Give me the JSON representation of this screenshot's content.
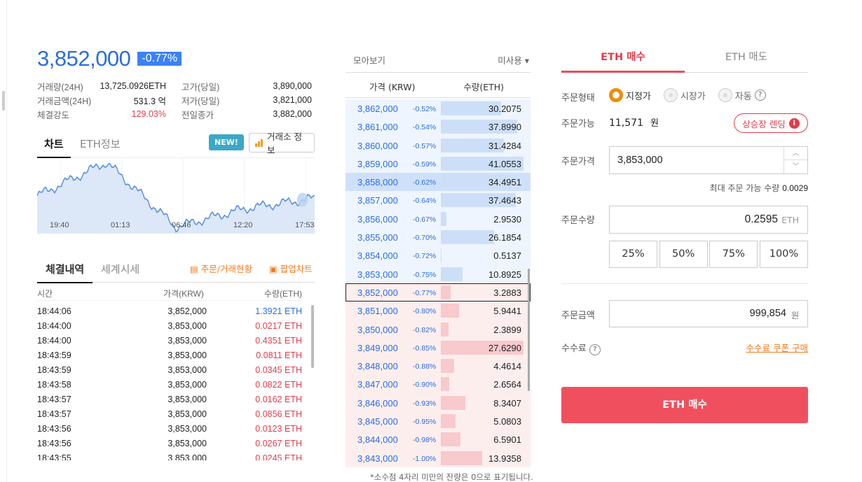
{
  "ticker": {
    "price": "3,852,000",
    "change": "-0.77%",
    "stats": [
      {
        "label": "거래량(24H)",
        "value": "13,725.0926ETH",
        "label2": "고가(당일)",
        "value2": "3,890,000"
      },
      {
        "label": "거래금액(24H)",
        "value": "531.3 억",
        "label2": "저가(당일)",
        "value2": "3,821,000"
      },
      {
        "label": "체결강도",
        "value": "129.03%",
        "label2": "전일종가",
        "value2": "3,882,000"
      }
    ]
  },
  "chart_tabs": {
    "active": "차트",
    "inactive": "ETH정보",
    "new_badge": "NEW!",
    "exchange_info": "거래소 정보"
  },
  "chart_data": {
    "type": "area",
    "x_ticks": [
      "19:40",
      "01:13",
      "06:46",
      "12:20",
      "17:53"
    ],
    "x": [
      "19:40",
      "01:13",
      "06:46",
      "12:20",
      "17:53"
    ],
    "values": [
      3855000,
      3895000,
      3818000,
      3840000,
      3852000
    ],
    "series_color": "#5b8fdc",
    "fill_color": "#dce8f8",
    "grid": true
  },
  "trade_tabs": {
    "active": "체결내역",
    "inactive": "세계시세",
    "link1": "주문/거래현황",
    "link2": "팝업차트"
  },
  "trade_head": {
    "time": "시간",
    "price": "가격(KRW)",
    "qty": "수량(ETH)"
  },
  "trades": [
    {
      "time": "18:44:06",
      "price": "3,852,000",
      "qty": "1.3921 ETH",
      "side": "sell"
    },
    {
      "time": "18:44:00",
      "price": "3,853,000",
      "qty": "0.0217 ETH",
      "side": "buy"
    },
    {
      "time": "18:44:00",
      "price": "3,853,000",
      "qty": "0.4351 ETH",
      "side": "buy"
    },
    {
      "time": "18:43:59",
      "price": "3,853,000",
      "qty": "0.0811 ETH",
      "side": "buy"
    },
    {
      "time": "18:43:59",
      "price": "3,853,000",
      "qty": "0.0345 ETH",
      "side": "buy"
    },
    {
      "time": "18:43:58",
      "price": "3,853,000",
      "qty": "0.0822 ETH",
      "side": "buy"
    },
    {
      "time": "18:43:57",
      "price": "3,853,000",
      "qty": "0.0162 ETH",
      "side": "buy"
    },
    {
      "time": "18:43:57",
      "price": "3,853,000",
      "qty": "0.0856 ETH",
      "side": "buy"
    },
    {
      "time": "18:43:56",
      "price": "3,853,000",
      "qty": "0.0123 ETH",
      "side": "buy"
    },
    {
      "time": "18:43:56",
      "price": "3,853,000",
      "qty": "0.0267 ETH",
      "side": "buy"
    },
    {
      "time": "18:43:55",
      "price": "3,853,000",
      "qty": "0.0245 ETH",
      "side": "buy"
    }
  ],
  "orderbook": {
    "view_label": "모아보기",
    "view_option": "미사용 ▾",
    "col_price": "가격 (KRW)",
    "col_qty": "수량(ETH)",
    "note": "*소수점 4자리 미만의 잔량은 0으로 표기됩니다.",
    "asks": [
      {
        "price": "3,862,000",
        "change": "-0.52%",
        "qty": "30.2075",
        "ratio": 0.73
      },
      {
        "price": "3,861,000",
        "change": "-0.54%",
        "qty": "37.8990",
        "ratio": 0.92
      },
      {
        "price": "3,860,000",
        "change": "-0.57%",
        "qty": "31.4284",
        "ratio": 0.76
      },
      {
        "price": "3,859,000",
        "change": "-0.59%",
        "qty": "41.0553",
        "ratio": 1.0
      },
      {
        "price": "3,858,000",
        "change": "-0.62%",
        "qty": "34.4951",
        "ratio": 0.84,
        "highlight": true
      },
      {
        "price": "3,857,000",
        "change": "-0.64%",
        "qty": "37.4643",
        "ratio": 0.91
      },
      {
        "price": "3,856,000",
        "change": "-0.67%",
        "qty": "2.9530",
        "ratio": 0.07
      },
      {
        "price": "3,855,000",
        "change": "-0.70%",
        "qty": "26.1854",
        "ratio": 0.64
      },
      {
        "price": "3,854,000",
        "change": "-0.72%",
        "qty": "0.5137",
        "ratio": 0.01
      },
      {
        "price": "3,853,000",
        "change": "-0.75%",
        "qty": "10.8925",
        "ratio": 0.26
      }
    ],
    "bids": [
      {
        "price": "3,852,000",
        "change": "-0.77%",
        "qty": "3.2883",
        "ratio": 0.12,
        "current": true
      },
      {
        "price": "3,851,000",
        "change": "-0.80%",
        "qty": "5.9441",
        "ratio": 0.22
      },
      {
        "price": "3,850,000",
        "change": "-0.82%",
        "qty": "2.3899",
        "ratio": 0.09
      },
      {
        "price": "3,849,000",
        "change": "-0.85%",
        "qty": "27.6290",
        "ratio": 1.0
      },
      {
        "price": "3,848,000",
        "change": "-0.88%",
        "qty": "4.4614",
        "ratio": 0.16
      },
      {
        "price": "3,847,000",
        "change": "-0.90%",
        "qty": "2.6564",
        "ratio": 0.1
      },
      {
        "price": "3,846,000",
        "change": "-0.93%",
        "qty": "8.3407",
        "ratio": 0.3
      },
      {
        "price": "3,845,000",
        "change": "-0.95%",
        "qty": "5.0803",
        "ratio": 0.18
      },
      {
        "price": "3,844,000",
        "change": "-0.98%",
        "qty": "6.5901",
        "ratio": 0.24
      },
      {
        "price": "3,843,000",
        "change": "-1.00%",
        "qty": "13.9358",
        "ratio": 0.5
      }
    ]
  },
  "order_form": {
    "tab_buy": "ETH 매수",
    "tab_sell": "ETH 매도",
    "type_label": "주문형태",
    "types": [
      "지정가",
      "시장가",
      "자동"
    ],
    "help": "?",
    "avail_label": "주문가능",
    "avail_value": "11,571",
    "avail_unit": "원",
    "lend_button": "상승장 렌딩",
    "lend_info": "i",
    "price_label": "주문가격",
    "price_value": "3,853,000",
    "max_qty_label": "최대 주문 가능 수량",
    "max_qty_value": "0.0029",
    "qty_label": "주문수량",
    "qty_value": "0.2595",
    "qty_unit": "ETH",
    "pcts": [
      "25%",
      "50%",
      "75%",
      "100%"
    ],
    "amount_label": "주문금액",
    "amount_value": "999,854",
    "amount_unit": "원",
    "fee_label": "수수료",
    "coupon_link": "수수료 쿠폰 구매",
    "buy_button": "ETH 매수"
  }
}
